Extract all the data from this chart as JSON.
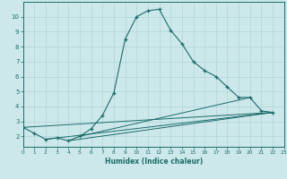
{
  "xlabel": "Humidex (Indice chaleur)",
  "xlim": [
    0,
    23
  ],
  "ylim": [
    1.3,
    11
  ],
  "yticks": [
    2,
    3,
    4,
    5,
    6,
    7,
    8,
    9,
    10
  ],
  "xticks": [
    0,
    1,
    2,
    3,
    4,
    5,
    6,
    7,
    8,
    9,
    10,
    11,
    12,
    13,
    14,
    15,
    16,
    17,
    18,
    19,
    20,
    21,
    22,
    23
  ],
  "bg_color": "#cde8ea",
  "grid_color": "#b0d4d8",
  "line_color": "#1a6b6b",
  "main_x": [
    0,
    1,
    2,
    3,
    4,
    5,
    6,
    7,
    8,
    9,
    10,
    11,
    12,
    13,
    14,
    15,
    16,
    17,
    18,
    19,
    20,
    21,
    22
  ],
  "main_y": [
    2.6,
    2.2,
    1.8,
    1.9,
    1.7,
    2.0,
    2.5,
    3.4,
    4.9,
    8.5,
    10.0,
    10.4,
    10.5,
    9.1,
    8.2,
    7.0,
    6.4,
    6.0,
    5.3,
    4.6,
    4.6,
    3.7,
    3.6
  ],
  "flat_lines": [
    {
      "x": [
        0,
        22
      ],
      "y": [
        2.6,
        3.6
      ]
    },
    {
      "x": [
        2,
        22
      ],
      "y": [
        1.8,
        3.6
      ]
    },
    {
      "x": [
        4,
        22
      ],
      "y": [
        1.7,
        3.6
      ]
    },
    {
      "x": [
        5,
        20
      ],
      "y": [
        2.0,
        4.6
      ]
    }
  ]
}
